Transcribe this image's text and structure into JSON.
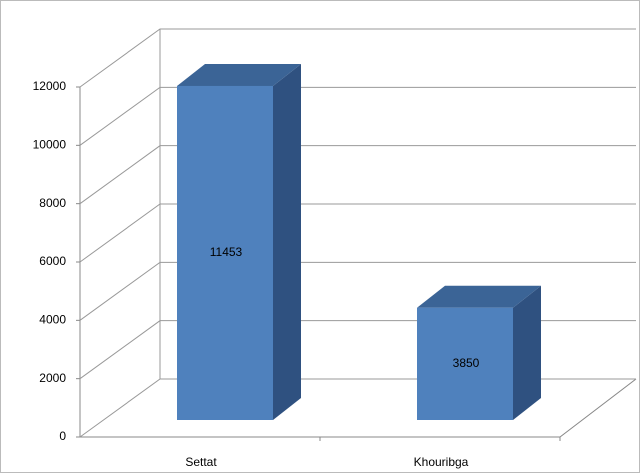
{
  "chart_data": {
    "type": "bar3d",
    "categories": [
      "Settat",
      "Khouribga"
    ],
    "values": [
      11453,
      3850
    ],
    "color": "#4f81bd",
    "ylim": [
      0,
      12000
    ],
    "yticks": [
      0,
      2000,
      4000,
      6000,
      8000,
      10000,
      12000
    ],
    "grid": true
  }
}
